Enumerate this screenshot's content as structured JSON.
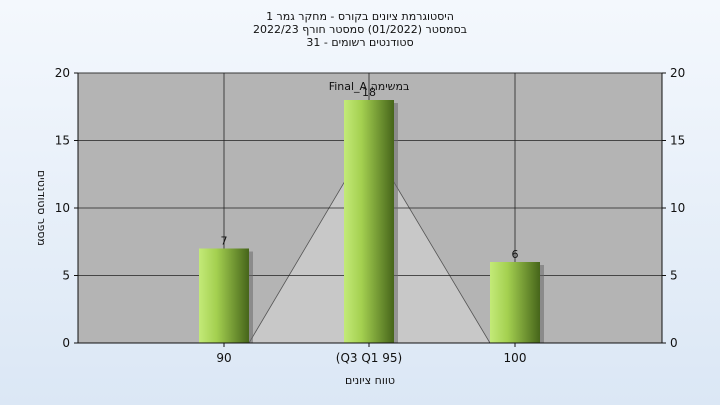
{
  "chart_data": {
    "type": "bar",
    "title_lines": [
      "היסטוגרמת ציונים בקורס - מחקר גמר 1",
      "בסמסטר  (01/2022)  סמסטר חורף 2022/23",
      "סטודנטים רשומים - 31"
    ],
    "categories": [
      "90",
      "(Q3 Q1 95)",
      "100"
    ],
    "values": [
      7,
      18,
      6
    ],
    "value_labels": [
      "7",
      "18",
      "6"
    ],
    "annotation": "Final_A במשימה",
    "xlabel": "טווח ציונים",
    "ylabel": "מספר סטודנטים",
    "ylim": [
      0,
      20
    ],
    "yticks": [
      0,
      5,
      10,
      15,
      20
    ],
    "grid": true,
    "legend": "none",
    "colors": {
      "plot_bg": "#b4b4b4",
      "bar_light": "#b8e06a",
      "bar_dark": "#4a6a1c",
      "triangle": "#c8c8c8",
      "grid": "#222222"
    }
  }
}
